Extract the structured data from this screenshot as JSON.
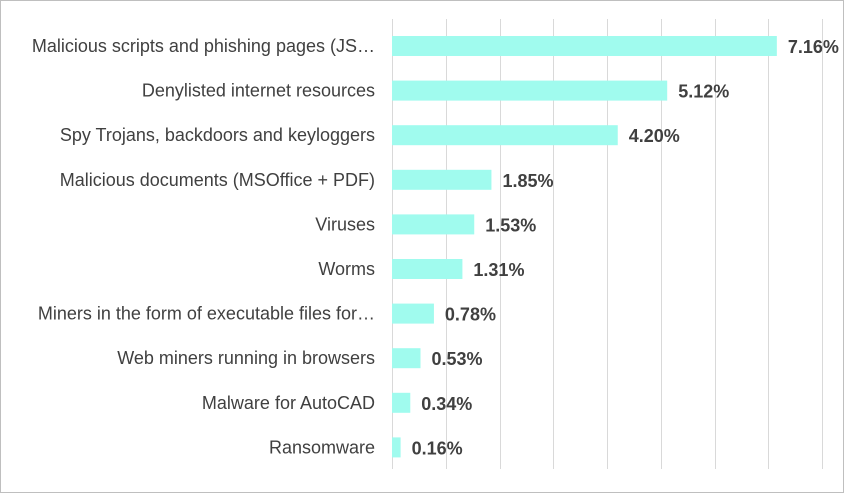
{
  "chart_data": {
    "type": "bar",
    "orientation": "horizontal",
    "title": "",
    "xlabel": "",
    "ylabel": "",
    "categories": [
      "Malicious scripts and phishing pages (JS…",
      "Denylisted internet resources",
      "Spy Trojans, backdoors and keyloggers",
      "Malicious documents (MSOffice + PDF)",
      "Viruses",
      "Worms",
      "Miners in the form of executable files for…",
      "Web miners running in browsers",
      "Malware for AutoCAD",
      "Ransomware"
    ],
    "values": [
      7.16,
      5.12,
      4.2,
      1.85,
      1.53,
      1.31,
      0.78,
      0.53,
      0.34,
      0.16
    ],
    "value_labels": [
      "7.16%",
      "5.12%",
      "4.20%",
      "1.85%",
      "1.53%",
      "1.31%",
      "0.78%",
      "0.53%",
      "0.34%",
      "0.16%"
    ],
    "xlim": [
      0,
      8
    ],
    "grid": true,
    "legend": "none",
    "bar_color": "#a0fbee"
  }
}
